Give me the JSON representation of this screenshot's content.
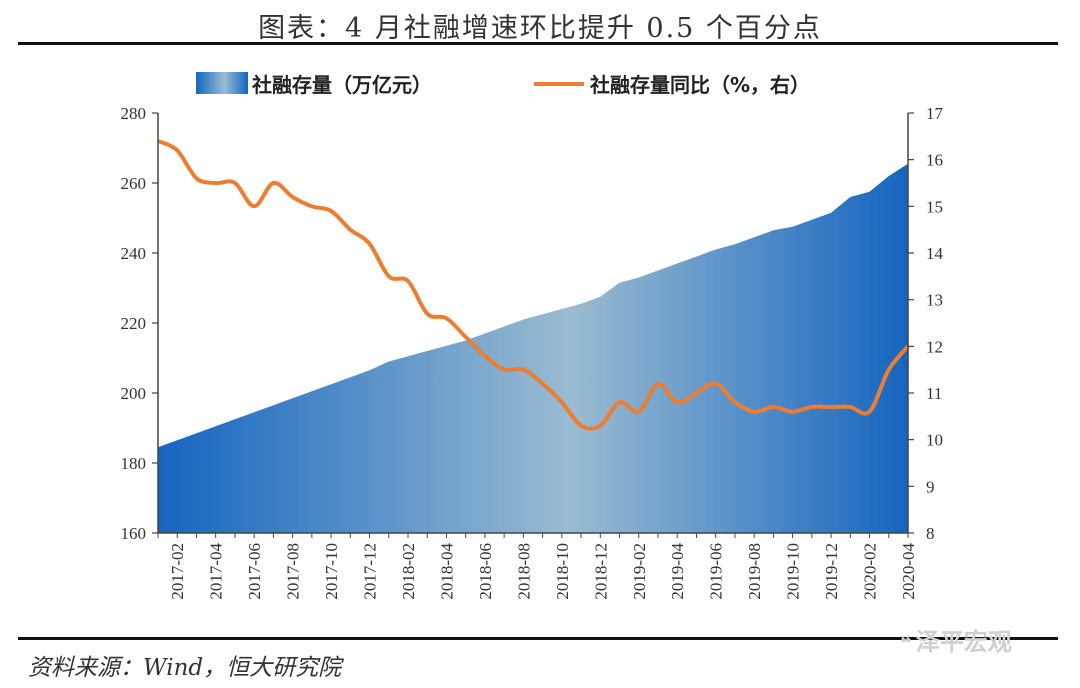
{
  "title": "图表：4 月社融增速环比提升 0.5 个百分点",
  "source": "资料来源：Wind，恒大研究院",
  "watermark": "泽平宏观",
  "colors": {
    "area_dark": "#1565c0",
    "area_light": "#9bbcd1",
    "line": "#ed7d31",
    "axis": "#444444"
  },
  "chart_data": {
    "type": "area+line",
    "legend_position": "top",
    "grid": false,
    "x": [
      "2017-01",
      "2017-02",
      "2017-03",
      "2017-04",
      "2017-05",
      "2017-06",
      "2017-07",
      "2017-08",
      "2017-09",
      "2017-10",
      "2017-11",
      "2017-12",
      "2018-01",
      "2018-02",
      "2018-03",
      "2018-04",
      "2018-05",
      "2018-06",
      "2018-07",
      "2018-08",
      "2018-09",
      "2018-10",
      "2018-11",
      "2018-12",
      "2019-01",
      "2019-02",
      "2019-03",
      "2019-04",
      "2019-05",
      "2019-06",
      "2019-07",
      "2019-08",
      "2019-09",
      "2019-10",
      "2019-11",
      "2019-12",
      "2020-01",
      "2020-02",
      "2020-03",
      "2020-04"
    ],
    "x_tick_labels": [
      "2017-02",
      "2017-04",
      "2017-06",
      "2017-08",
      "2017-10",
      "2017-12",
      "2018-02",
      "2018-04",
      "2018-06",
      "2018-08",
      "2018-10",
      "2018-12",
      "2019-02",
      "2019-04",
      "2019-06",
      "2019-08",
      "2019-10",
      "2019-12",
      "2020-02",
      "2020-04"
    ],
    "y_left": {
      "range": [
        160,
        280
      ],
      "ticks": [
        160,
        180,
        200,
        220,
        240,
        260,
        280
      ]
    },
    "y_right": {
      "range": [
        8,
        17
      ],
      "ticks": [
        8,
        9,
        10,
        11,
        12,
        13,
        14,
        15,
        16,
        17
      ]
    },
    "series": [
      {
        "name": "社融存量（万亿元）",
        "type": "area",
        "axis": "left",
        "values": [
          184.5,
          186.5,
          188.5,
          190.5,
          192.5,
          194.5,
          196.5,
          198.5,
          200.5,
          202.5,
          204.5,
          206.5,
          209.0,
          210.5,
          212.0,
          213.5,
          215.0,
          217.0,
          219.0,
          221.0,
          222.5,
          224.0,
          225.5,
          227.5,
          231.5,
          233.0,
          235.0,
          237.0,
          239.0,
          241.0,
          242.5,
          244.5,
          246.5,
          247.5,
          249.5,
          251.5,
          256.0,
          257.5,
          262.0,
          265.5
        ]
      },
      {
        "name": "社融存量同比（%，右）",
        "type": "line",
        "axis": "right",
        "values": [
          16.4,
          16.2,
          15.6,
          15.5,
          15.5,
          15.0,
          15.5,
          15.2,
          15.0,
          14.9,
          14.5,
          14.2,
          13.5,
          13.4,
          12.7,
          12.6,
          12.2,
          11.8,
          11.5,
          11.5,
          11.2,
          10.8,
          10.3,
          10.3,
          10.8,
          10.6,
          11.2,
          10.8,
          11.0,
          11.2,
          10.8,
          10.6,
          10.7,
          10.6,
          10.7,
          10.7,
          10.7,
          10.6,
          11.5,
          12.0
        ]
      }
    ]
  }
}
